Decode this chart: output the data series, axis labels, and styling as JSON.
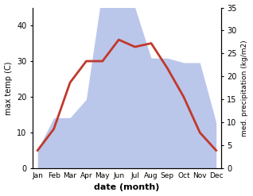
{
  "months": [
    "Jan",
    "Feb",
    "Mar",
    "Apr",
    "May",
    "Jun",
    "Jul",
    "Aug",
    "Sep",
    "Oct",
    "Nov",
    "Dec"
  ],
  "temperature": [
    5,
    11,
    24,
    30,
    30,
    36,
    34,
    35,
    28,
    20,
    10,
    5
  ],
  "precipitation": [
    4,
    11,
    11,
    15,
    39,
    37,
    35,
    24,
    24,
    23,
    23,
    10
  ],
  "temp_color": "#c0392b",
  "precip_color": "#b0bce8",
  "temp_ylim": [
    0,
    45
  ],
  "precip_ylim": [
    0,
    35
  ],
  "left_ylim": [
    0,
    45
  ],
  "left_yticks": [
    0,
    10,
    20,
    30,
    40
  ],
  "right_yticks": [
    0,
    5,
    10,
    15,
    20,
    25,
    30,
    35
  ],
  "xlabel": "date (month)",
  "ylabel_left": "max temp (C)",
  "ylabel_right": "med. precipitation (kg/m2)",
  "bg_color": "#ffffff",
  "line_width": 2.0
}
